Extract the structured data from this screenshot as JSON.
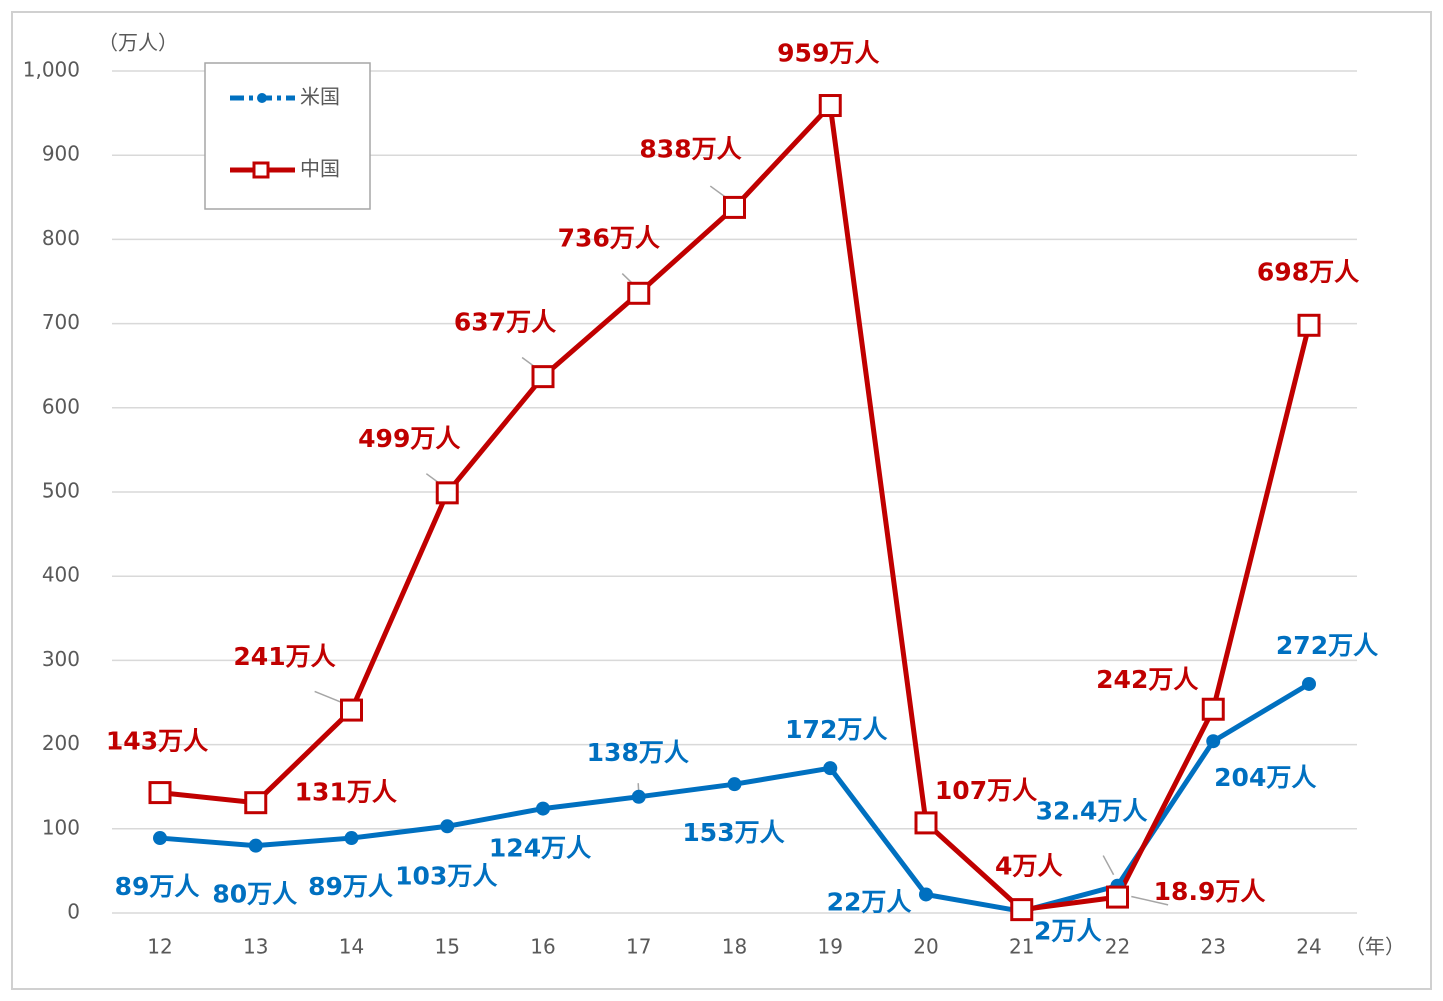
{
  "chart_data": {
    "type": "line",
    "y_label": "（万人）",
    "x_label": "（年）",
    "categories": [
      "12",
      "13",
      "14",
      "15",
      "16",
      "17",
      "18",
      "19",
      "20",
      "21",
      "22",
      "23",
      "24"
    ],
    "series": [
      {
        "name": "米国",
        "color": "#0070c0",
        "marker": "circle",
        "values": [
          89,
          80,
          89,
          103,
          124,
          138,
          153,
          172,
          22,
          2,
          32.4,
          204,
          272
        ],
        "value_labels": [
          "89万人",
          "80万人",
          "89万人",
          "103万人",
          "124万人",
          "138万人",
          "153万人",
          "172万人",
          "22万人",
          "2万人",
          "32.4万人",
          "204万人",
          "272万人"
        ]
      },
      {
        "name": "中国",
        "color": "#c00000",
        "marker": "square",
        "values": [
          143,
          131,
          241,
          499,
          637,
          736,
          838,
          959,
          107,
          4,
          18.9,
          242,
          698
        ],
        "value_labels": [
          "143万人",
          "131万人",
          "241万人",
          "499万人",
          "637万人",
          "736万人",
          "838万人",
          "959万人",
          "107万人",
          "4万人",
          "18.9万人",
          "242万人",
          "698万人"
        ]
      }
    ],
    "ylim": [
      0,
      1000
    ],
    "yticks": [
      0,
      100,
      200,
      300,
      400,
      500,
      600,
      700,
      800,
      900,
      {
        "value": 1000,
        "label": "1,000"
      }
    ],
    "grid": true,
    "legend": "upper-left"
  }
}
